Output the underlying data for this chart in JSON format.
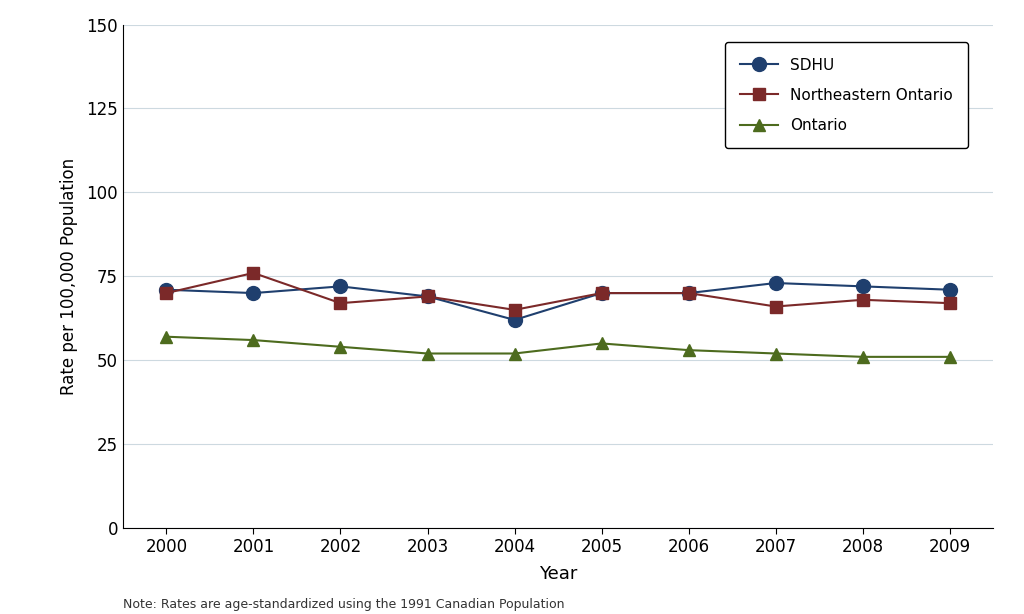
{
  "years": [
    2000,
    2001,
    2002,
    2003,
    2004,
    2005,
    2006,
    2007,
    2008,
    2009
  ],
  "sdhu": [
    71,
    70,
    72,
    69,
    62,
    70,
    70,
    73,
    72,
    71
  ],
  "northeastern_ontario": [
    70,
    76,
    67,
    69,
    65,
    70,
    70,
    66,
    68,
    67
  ],
  "ontario": [
    57,
    56,
    54,
    52,
    52,
    55,
    53,
    52,
    51,
    51
  ],
  "sdhu_color": "#1f3f6e",
  "northeastern_color": "#7b2929",
  "ontario_color": "#4d6b1e",
  "sdhu_label": "SDHU",
  "northeastern_label": "Northeastern Ontario",
  "ontario_label": "Ontario",
  "xlabel": "Year",
  "ylabel": "Rate per 100,000 Population",
  "ylim": [
    0,
    150
  ],
  "yticks": [
    0,
    25,
    50,
    75,
    100,
    125,
    150
  ],
  "xlim": [
    1999.5,
    2009.5
  ],
  "note": "Note: Rates are age-standardized using the 1991 Canadian Population",
  "background_color": "#ffffff",
  "grid_color": "#cdd9e0"
}
